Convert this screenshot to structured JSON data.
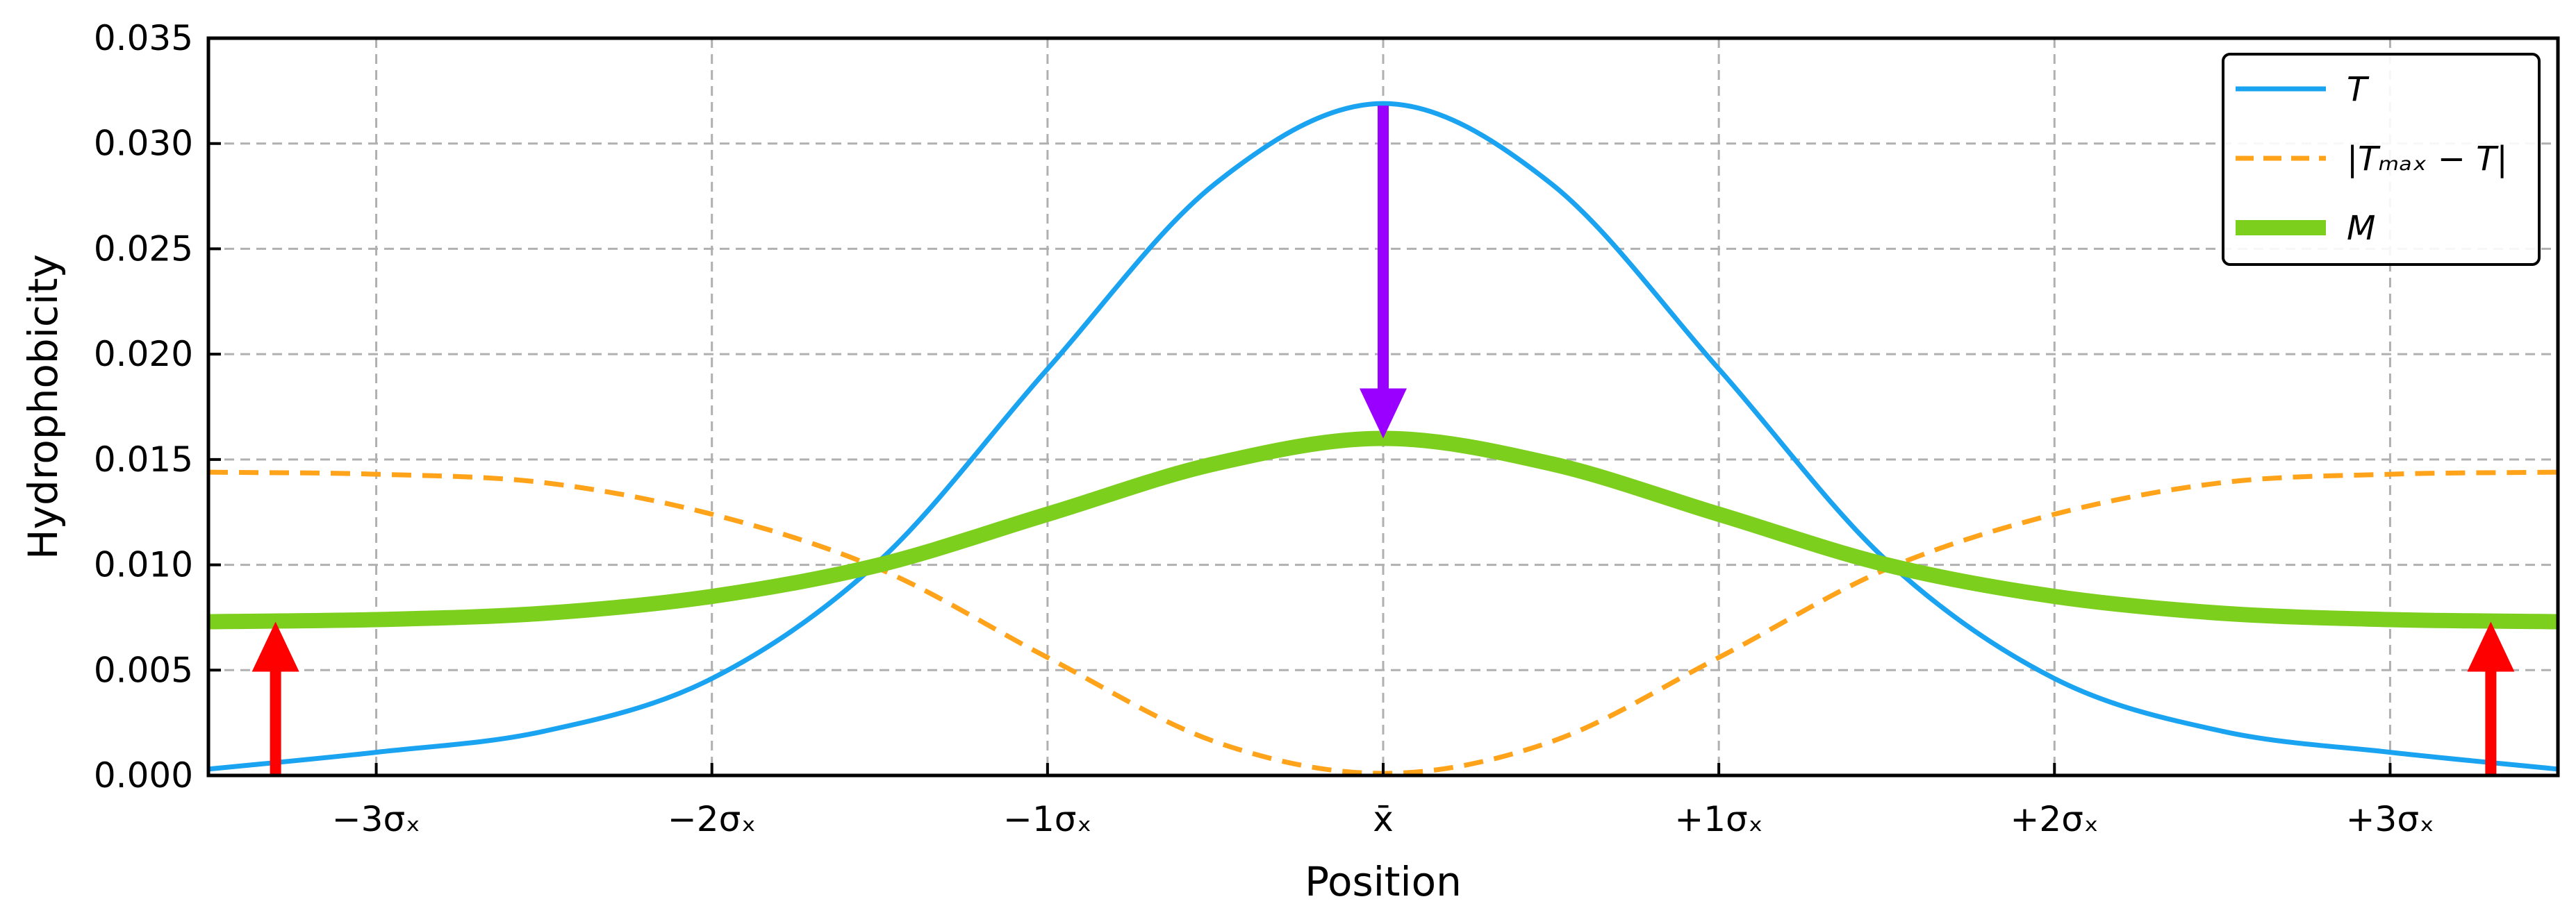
{
  "chart_data": {
    "type": "line",
    "xlabel": "Position",
    "ylabel": "Hydrophobicity",
    "xlim": [
      -3.5,
      3.5
    ],
    "ylim": [
      0,
      0.035
    ],
    "grid": true,
    "legend_position": "top-right",
    "x_ticks": [
      {
        "value": -3,
        "label": "−3σₓ"
      },
      {
        "value": -2,
        "label": "−2σₓ"
      },
      {
        "value": -1,
        "label": "−1σₓ"
      },
      {
        "value": 0,
        "label": "x̄"
      },
      {
        "value": 1,
        "label": "+1σₓ"
      },
      {
        "value": 2,
        "label": "+2σₓ"
      },
      {
        "value": 3,
        "label": "+3σₓ"
      }
    ],
    "y_ticks": [
      {
        "value": 0.0,
        "label": "0.000"
      },
      {
        "value": 0.005,
        "label": "0.005"
      },
      {
        "value": 0.01,
        "label": "0.010"
      },
      {
        "value": 0.015,
        "label": "0.015"
      },
      {
        "value": 0.02,
        "label": "0.020"
      },
      {
        "value": 0.025,
        "label": "0.025"
      },
      {
        "value": 0.03,
        "label": "0.030"
      },
      {
        "value": 0.035,
        "label": "0.035"
      }
    ],
    "x": [
      -3.5,
      -3.0,
      -2.5,
      -2.0,
      -1.5,
      -1.0,
      -0.5,
      0.0,
      0.5,
      1.0,
      1.5,
      2.0,
      2.5,
      3.0,
      3.5
    ],
    "series": [
      {
        "name": "T",
        "color": "#1aa3f0",
        "style": "solid",
        "values": [
          0.0003,
          0.0011,
          0.0021,
          0.0046,
          0.0102,
          0.0193,
          0.0281,
          0.0319,
          0.0281,
          0.0193,
          0.0102,
          0.0046,
          0.0021,
          0.0011,
          0.0003
        ]
      },
      {
        "name": "|Tₘₐₓ − T|",
        "color": "#ffa31a",
        "style": "dashed",
        "values": [
          0.0144,
          0.0143,
          0.0139,
          0.0124,
          0.0098,
          0.0056,
          0.0016,
          0.0001,
          0.0016,
          0.0056,
          0.0098,
          0.0124,
          0.0139,
          0.0143,
          0.0144
        ]
      },
      {
        "name": "M",
        "color": "#7dcf1e",
        "style": "solid-thick",
        "values": [
          0.0073,
          0.0074,
          0.0077,
          0.0085,
          0.01,
          0.0124,
          0.0148,
          0.016,
          0.0148,
          0.0124,
          0.01,
          0.0085,
          0.0077,
          0.0074,
          0.0073
        ]
      }
    ],
    "annotations": [
      {
        "type": "arrow",
        "color": "#9a00ff",
        "x": 0.0,
        "y_from": 0.0318,
        "y_to": 0.016
      },
      {
        "type": "arrow",
        "color": "#ff0000",
        "x": -3.3,
        "y_from": 0.0,
        "y_to": 0.0073
      },
      {
        "type": "arrow",
        "color": "#ff0000",
        "x": 3.3,
        "y_from": 0.0,
        "y_to": 0.0073
      }
    ]
  }
}
